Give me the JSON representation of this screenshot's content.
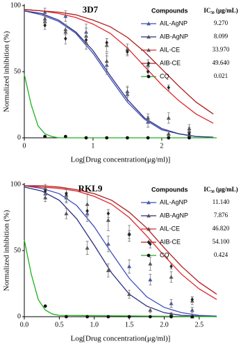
{
  "chart_data": [
    {
      "type": "dose-response",
      "title": "3D7",
      "xlabel": "Log[Drug concentration(μg/ml)]",
      "ylabel": "Normalized inhibition (%)",
      "xlim": [
        0,
        2.8
      ],
      "ylim": [
        0,
        100
      ],
      "xticks": [
        0,
        1,
        2
      ],
      "yticks": [
        0,
        50,
        100
      ],
      "legend_header": [
        "Compounds",
        "IC₅₀ (µg/mL)"
      ],
      "series": [
        {
          "name": "AIL-AgNP",
          "ic50": "9.270",
          "color": "#3b4cc0",
          "marker": "triangle",
          "marker_color": "#4a5a9a",
          "x": [
            0.3,
            0.6,
            0.9,
            1.2,
            1.5,
            1.8,
            2.1,
            2.4
          ],
          "values": [
            95,
            92,
            80,
            55,
            33,
            12,
            3,
            2
          ],
          "errors": [
            3,
            4,
            6,
            7,
            5,
            4,
            2,
            2
          ],
          "fit": {
            "x": [
              0,
              0.25,
              0.5,
              0.75,
              1,
              1.25,
              1.5,
              1.75,
              2,
              2.25,
              2.5,
              2.75
            ],
            "values": [
              96,
              93,
              88,
              79,
              64,
              45,
              27,
              14,
              6,
              3,
              1,
              0.5
            ]
          }
        },
        {
          "name": "AIB-AgNP",
          "ic50": "8.099",
          "color": "#2a2d80",
          "marker": "triangle",
          "marker_color": "#555555",
          "x": [
            0.3,
            0.6,
            0.9,
            1.2,
            1.5,
            1.8,
            2.1,
            2.4
          ],
          "values": [
            88,
            82,
            72,
            58,
            35,
            15,
            3,
            5
          ],
          "errors": [
            3,
            4,
            5,
            6,
            4,
            3,
            2,
            3
          ],
          "fit": {
            "x": [
              0,
              0.25,
              0.5,
              0.75,
              1,
              1.25,
              1.5,
              1.75,
              2,
              2.25,
              2.5,
              2.75
            ],
            "values": [
              96,
              94,
              89,
              80,
              66,
              47,
              29,
              15,
              7,
              3,
              1,
              0.5
            ]
          }
        },
        {
          "name": "AIL-CE",
          "ic50": "33.970",
          "color": "#e0252b",
          "marker": "triangle",
          "marker_color": "#555555",
          "x": [
            0.3,
            0.6,
            0.9,
            1.2,
            1.5,
            1.8,
            2.1,
            2.4
          ],
          "values": [
            90,
            80,
            77,
            70,
            67,
            55,
            15,
            7
          ],
          "errors": [
            4,
            5,
            6,
            5,
            4,
            4,
            4,
            3
          ],
          "fit": {
            "x": [
              0,
              0.25,
              0.5,
              0.75,
              1,
              1.25,
              1.5,
              1.75,
              2,
              2.25,
              2.5,
              2.75
            ],
            "values": [
              97,
              96,
              94,
              91,
              86,
              79,
              68,
              54,
              40,
              28,
              18,
              11
            ]
          }
        },
        {
          "name": "AIB-CE",
          "ic50": "49.640",
          "color": "#b01c1c",
          "marker": "diamond",
          "marker_color": "#222222",
          "x": [
            0.3,
            0.6,
            0.9,
            1.2,
            1.5,
            1.8,
            2.1,
            2.4
          ],
          "values": [
            85,
            75,
            74,
            72,
            65,
            50,
            38,
            3
          ],
          "errors": [
            3,
            4,
            3,
            3,
            3,
            3,
            2,
            2
          ],
          "fit": {
            "x": [
              0,
              0.25,
              0.5,
              0.75,
              1,
              1.25,
              1.5,
              1.75,
              2,
              2.25,
              2.5,
              2.75
            ],
            "values": [
              97,
              96,
              95,
              93,
              89,
              84,
              76,
              65,
              52,
              39,
              27,
              18
            ]
          }
        },
        {
          "name": "CQ",
          "ic50": "0.021",
          "color": "#1db11d",
          "marker": "circle",
          "marker_color": "#111111",
          "x": [
            0.3,
            0.6,
            0.9,
            1.2,
            1.5,
            1.8,
            2.1,
            2.4
          ],
          "values": [
            1,
            1,
            0,
            0,
            0,
            0,
            0,
            0
          ],
          "errors": [
            0,
            0,
            0,
            0,
            0,
            0,
            0,
            0
          ],
          "fit": {
            "x": [
              0,
              0.1,
              0.2,
              0.3,
              0.4,
              0.5,
              2.8
            ],
            "values": [
              48,
              25,
              9,
              3,
              1,
              0,
              0
            ]
          }
        }
      ]
    },
    {
      "type": "dose-response",
      "title": "RKL9",
      "xlabel": "Log[Drug concentration(μg/ml)]",
      "ylabel": "Normalized inhibition (%)",
      "xlim": [
        0,
        2.75
      ],
      "ylim": [
        0,
        100
      ],
      "xticks": [
        {
          "value": 0,
          "label": "0.0"
        },
        {
          "value": 0.5,
          "label": "0.5"
        },
        {
          "value": 1,
          "label": "1.0"
        },
        {
          "value": 1.5,
          "label": "1.5"
        },
        {
          "value": 2,
          "label": "2.0"
        },
        {
          "value": 2.5,
          "label": "2.5"
        }
      ],
      "yticks": [
        0,
        50,
        100
      ],
      "legend_header": [
        "Compounds",
        "IC₅₀ (µg/mL)"
      ],
      "series": [
        {
          "name": "AIL-AgNP",
          "ic50": "11.140",
          "color": "#3b4cc0",
          "marker": "triangle",
          "marker_color": "#4a5a9a",
          "x": [
            0.3,
            0.6,
            0.9,
            1.2,
            1.5,
            1.8,
            2.1,
            2.4
          ],
          "values": [
            93,
            90,
            78,
            55,
            38,
            28,
            10,
            5
          ],
          "errors": [
            3,
            4,
            6,
            6,
            5,
            4,
            3,
            2
          ],
          "fit": {
            "x": [
              0,
              0.25,
              0.5,
              0.75,
              1,
              1.25,
              1.5,
              1.75,
              2,
              2.25,
              2.5,
              2.75
            ],
            "values": [
              99,
              97,
              93,
              84,
              68,
              48,
              29,
              15,
              7,
              3,
              1,
              0.5
            ]
          }
        },
        {
          "name": "AIB-AgNP",
          "ic50": "7.876",
          "color": "#2a2d80",
          "marker": "triangle",
          "marker_color": "#555555",
          "x": [
            0.3,
            0.6,
            0.9,
            1.2,
            1.5,
            1.8,
            2.1,
            2.4
          ],
          "values": [
            90,
            78,
            52,
            35,
            17,
            5,
            2,
            0
          ],
          "errors": [
            3,
            4,
            5,
            5,
            3,
            2,
            1,
            1
          ],
          "fit": {
            "x": [
              0,
              0.25,
              0.5,
              0.75,
              1,
              1.25,
              1.5,
              1.75,
              2,
              2.25,
              2.5,
              2.75
            ],
            "values": [
              98,
              95,
              88,
              74,
              54,
              33,
              17,
              8,
              3,
              1,
              0.5,
              0
            ]
          }
        },
        {
          "name": "AIL-CE",
          "ic50": "46.820",
          "color": "#e0252b",
          "marker": "triangle",
          "marker_color": "#555555",
          "x": [
            0.3,
            0.6,
            0.9,
            1.2,
            1.5,
            1.8,
            2.1,
            2.4
          ],
          "values": [
            97,
            92,
            85,
            73,
            63,
            40,
            30,
            12
          ],
          "errors": [
            3,
            5,
            8,
            8,
            6,
            5,
            4,
            3
          ],
          "fit": {
            "x": [
              0,
              0.25,
              0.5,
              0.75,
              1,
              1.25,
              1.5,
              1.75,
              2,
              2.25,
              2.5,
              2.75
            ],
            "values": [
              99,
              98,
              97,
              95,
              91,
              85,
              75,
              61,
              46,
              32,
              21,
              13
            ]
          }
        },
        {
          "name": "AIB-CE",
          "ic50": "54.100",
          "color": "#b01c1c",
          "marker": "diamond",
          "marker_color": "#222222",
          "x": [
            0.3,
            0.6,
            0.9,
            1.2,
            1.5,
            1.8,
            2.1,
            2.4
          ],
          "values": [
            95,
            93,
            80,
            78,
            62,
            55,
            38,
            13
          ],
          "errors": [
            2,
            3,
            4,
            3,
            3,
            3,
            2,
            2
          ],
          "fit": {
            "x": [
              0,
              0.25,
              0.5,
              0.75,
              1,
              1.25,
              1.5,
              1.75,
              2,
              2.25,
              2.5,
              2.75
            ],
            "values": [
              99,
              99,
              98,
              96,
              93,
              88,
              79,
              67,
              52,
              38,
              26,
              17
            ]
          }
        },
        {
          "name": "CQ",
          "ic50": "0.424",
          "color": "#1db11d",
          "marker": "circle",
          "marker_color": "#111111",
          "x": [
            0.3,
            0.6,
            0.9,
            1.2,
            1.5,
            1.8,
            2.1,
            2.4
          ],
          "values": [
            8,
            0,
            0,
            0,
            0,
            0,
            0,
            0
          ],
          "errors": [
            0,
            0,
            0,
            0,
            0,
            0,
            0,
            0
          ],
          "fit": {
            "x": [
              0,
              0.1,
              0.2,
              0.3,
              0.4,
              0.5,
              2.75
            ],
            "values": [
              58,
              32,
              13,
              5,
              2,
              1,
              0
            ]
          }
        }
      ]
    }
  ]
}
